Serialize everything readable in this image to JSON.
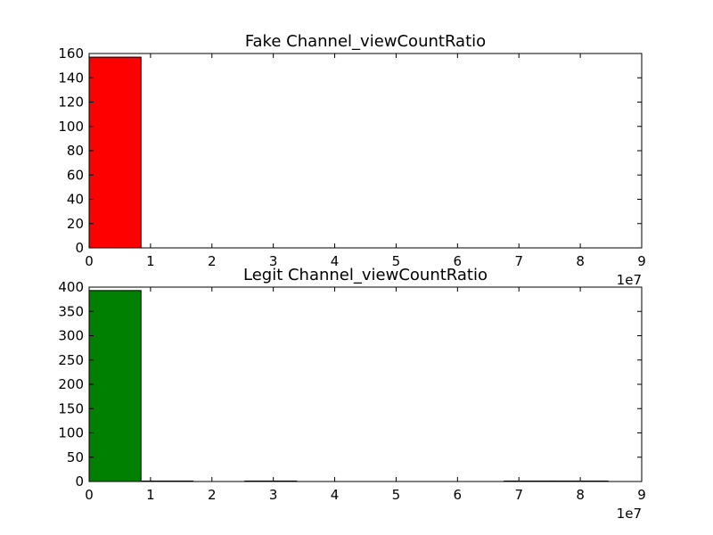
{
  "chart_data": [
    {
      "type": "bar",
      "title": "Fake Channel_viewCountRatio",
      "xlabel": "",
      "ylabel": "",
      "x_offset_label": "1e7",
      "xlim": [
        0,
        9
      ],
      "ylim": [
        0,
        160
      ],
      "xticks": [
        "0",
        "1",
        "2",
        "3",
        "4",
        "5",
        "6",
        "7",
        "8",
        "9"
      ],
      "yticks": [
        "0",
        "20",
        "40",
        "60",
        "80",
        "100",
        "120",
        "140",
        "160"
      ],
      "bar_color": "#ff0000",
      "bins": [
        {
          "x0": 0.0,
          "x1": 0.845,
          "count": 157
        },
        {
          "x0": 0.845,
          "x1": 1.69,
          "count": 0
        },
        {
          "x0": 1.69,
          "x1": 2.535,
          "count": 0
        },
        {
          "x0": 2.535,
          "x1": 3.38,
          "count": 0
        },
        {
          "x0": 3.38,
          "x1": 4.225,
          "count": 0
        },
        {
          "x0": 4.225,
          "x1": 5.07,
          "count": 0
        },
        {
          "x0": 5.07,
          "x1": 5.915,
          "count": 0
        },
        {
          "x0": 5.915,
          "x1": 6.76,
          "count": 0
        },
        {
          "x0": 6.76,
          "x1": 7.605,
          "count": 0
        },
        {
          "x0": 7.605,
          "x1": 8.45,
          "count": 0
        }
      ]
    },
    {
      "type": "bar",
      "title": "Legit Channel_viewCountRatio",
      "xlabel": "",
      "ylabel": "",
      "x_offset_label": "1e7",
      "xlim": [
        0,
        9
      ],
      "ylim": [
        0,
        400
      ],
      "xticks": [
        "0",
        "1",
        "2",
        "3",
        "4",
        "5",
        "6",
        "7",
        "8",
        "9"
      ],
      "yticks": [
        "0",
        "50",
        "100",
        "150",
        "200",
        "250",
        "300",
        "350",
        "400"
      ],
      "bar_color": "#008000",
      "bins": [
        {
          "x0": 0.0,
          "x1": 0.845,
          "count": 393
        },
        {
          "x0": 0.845,
          "x1": 1.69,
          "count": 1
        },
        {
          "x0": 1.69,
          "x1": 2.535,
          "count": 0
        },
        {
          "x0": 2.535,
          "x1": 3.38,
          "count": 1
        },
        {
          "x0": 3.38,
          "x1": 4.225,
          "count": 0
        },
        {
          "x0": 4.225,
          "x1": 5.07,
          "count": 0
        },
        {
          "x0": 5.07,
          "x1": 5.915,
          "count": 0
        },
        {
          "x0": 5.915,
          "x1": 6.76,
          "count": 0
        },
        {
          "x0": 6.76,
          "x1": 7.605,
          "count": 1
        },
        {
          "x0": 7.605,
          "x1": 8.45,
          "count": 1
        }
      ]
    }
  ]
}
